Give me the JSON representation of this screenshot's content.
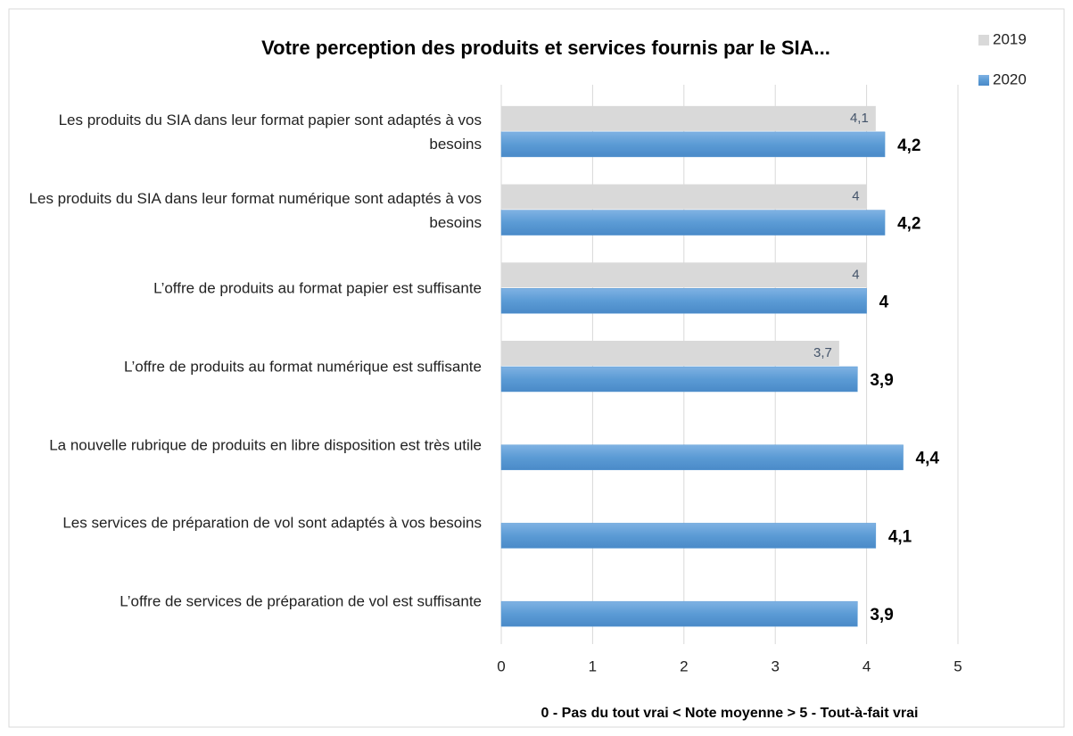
{
  "chart_data": {
    "type": "bar",
    "orientation": "horizontal",
    "title": "Votre perception des produits et services fournis par le SIA...",
    "xlabel": "0 - Pas du tout vrai < Note moyenne > 5 - Tout-à-fait vrai",
    "categories": [
      "Les produits du SIA dans leur format papier sont adaptés à vos besoins",
      "Les produits du SIA dans leur format numérique sont adaptés à vos besoins",
      "L’offre de produits au format papier est suffisante",
      "L’offre de produits au format numérique est suffisante",
      "La nouvelle rubrique de produits en libre disposition est très utile",
      "Les services de préparation de vol  sont adaptés à vos besoins",
      "L’offre de services de préparation de vol est suffisante"
    ],
    "series": [
      {
        "name": "2019",
        "color": "#d9d9d9",
        "values": [
          4.1,
          4,
          4,
          3.7,
          null,
          null,
          null
        ],
        "value_labels": [
          "4,1",
          "4",
          "4",
          "3,7",
          null,
          null,
          null
        ]
      },
      {
        "name": "2020",
        "color": "#5b9bd5",
        "values": [
          4.2,
          4.2,
          4,
          3.9,
          4.4,
          4.1,
          3.9
        ],
        "value_labels": [
          "4,2",
          "4,2",
          "4",
          "3,9",
          "4,4",
          "4,1",
          "3,9"
        ]
      }
    ],
    "xlim": [
      0,
      5
    ],
    "xticks": [
      0,
      1,
      2,
      3,
      4,
      5
    ],
    "grid": true,
    "legend": "upper right"
  }
}
